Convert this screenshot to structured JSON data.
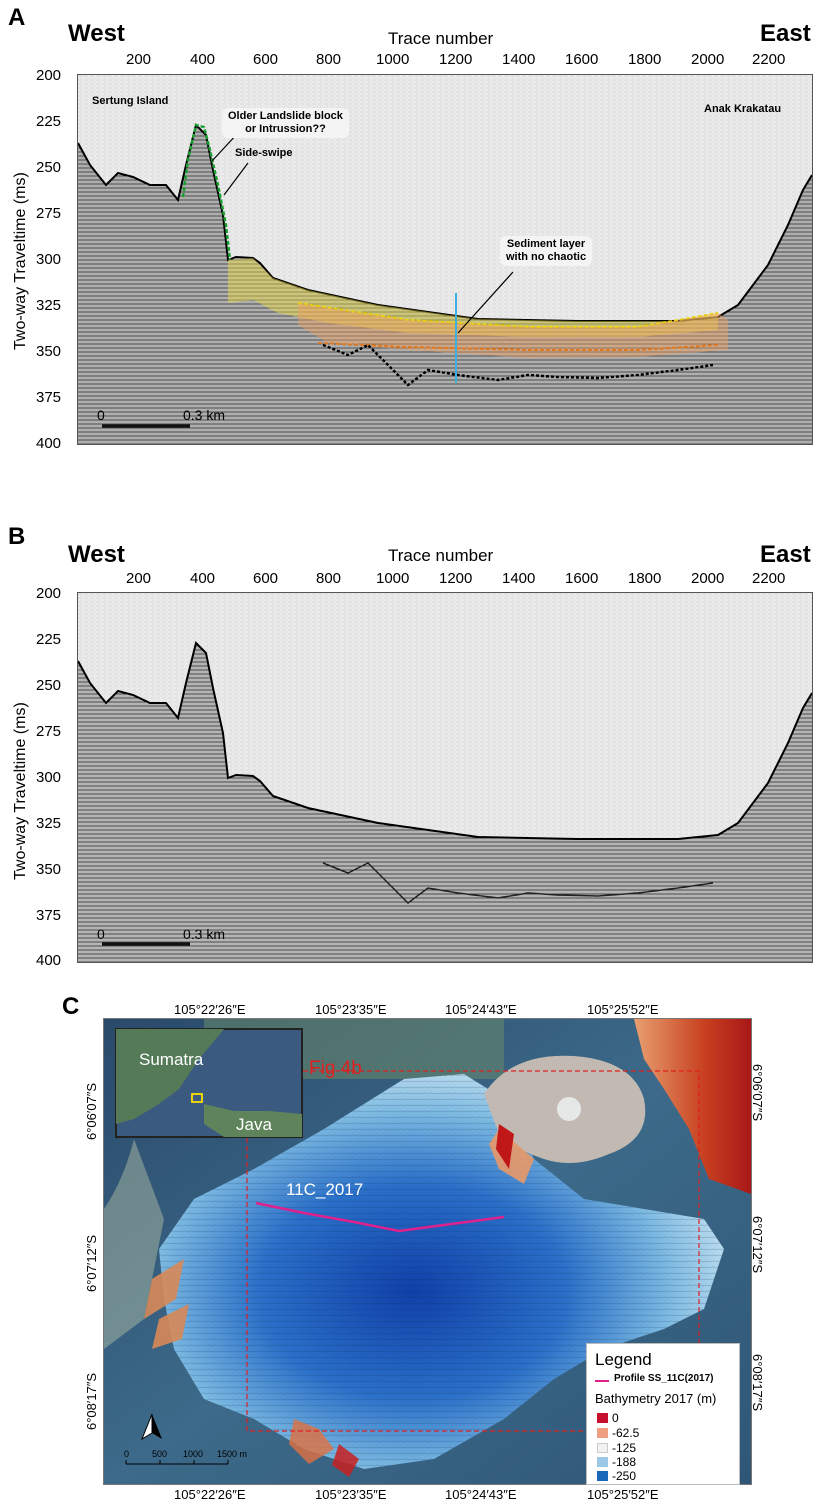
{
  "panels": [
    {
      "label": "A",
      "west": "West",
      "east": "East",
      "x_title": "Trace number",
      "y_title": "Two-way Traveltime (ms)",
      "x_ticks": [
        "200",
        "400",
        "600",
        "800",
        "1000",
        "1200",
        "1400",
        "1600",
        "1800",
        "2000",
        "2200"
      ],
      "y_ticks": [
        "200",
        "225",
        "250",
        "275",
        "300",
        "325",
        "350",
        "375",
        "400"
      ],
      "scale_zero": "0",
      "scale_label": "0.3 km",
      "annotations": {
        "sertung": "Sertung Island",
        "older": "Older Landslide block\nor Intrussion??",
        "sideswipe": "Side-swipe",
        "sediment": "Sediment layer\nwith no chaotic",
        "anak": "Anak Krakatau"
      }
    },
    {
      "label": "B",
      "west": "West",
      "east": "East",
      "x_title": "Trace number",
      "y_title": "Two-way Traveltime (ms)",
      "x_ticks": [
        "200",
        "400",
        "600",
        "800",
        "1000",
        "1200",
        "1400",
        "1600",
        "1800",
        "2000",
        "2200"
      ],
      "y_ticks": [
        "200",
        "225",
        "250",
        "275",
        "300",
        "325",
        "350",
        "375",
        "400"
      ],
      "scale_zero": "0",
      "scale_label": "0.3 km"
    }
  ],
  "map": {
    "label": "C",
    "lon_ticks": [
      "105°22′26″E",
      "105°23′35″E",
      "105°24′43″E",
      "105°25′52″E"
    ],
    "lat_ticks": [
      "6°06′07″S",
      "6°07′12″S",
      "6°08′17″S"
    ],
    "inset": {
      "sumatra": "Sumatra",
      "java": "Java"
    },
    "fig_ref": "Fig 4b",
    "profile_label": "11C_2017",
    "scale": {
      "ticks": [
        "0",
        "500",
        "1000",
        "1500 m"
      ]
    },
    "legend": {
      "title": "Legend",
      "profile": "Profile SS_11C(2017)",
      "bathy_title": "Bathymetry 2017 (m)",
      "items": [
        {
          "label": "0",
          "color": "#c8102e"
        },
        {
          "label": "-62.5",
          "color": "#f0a080"
        },
        {
          "label": "-125",
          "color": "#f2f2f2"
        },
        {
          "label": "-188",
          "color": "#9cc8e6"
        },
        {
          "label": "-250",
          "color": "#1a66b8"
        }
      ]
    },
    "colors": {
      "profile": "#e0208c",
      "fig_box": "#e02020"
    }
  }
}
